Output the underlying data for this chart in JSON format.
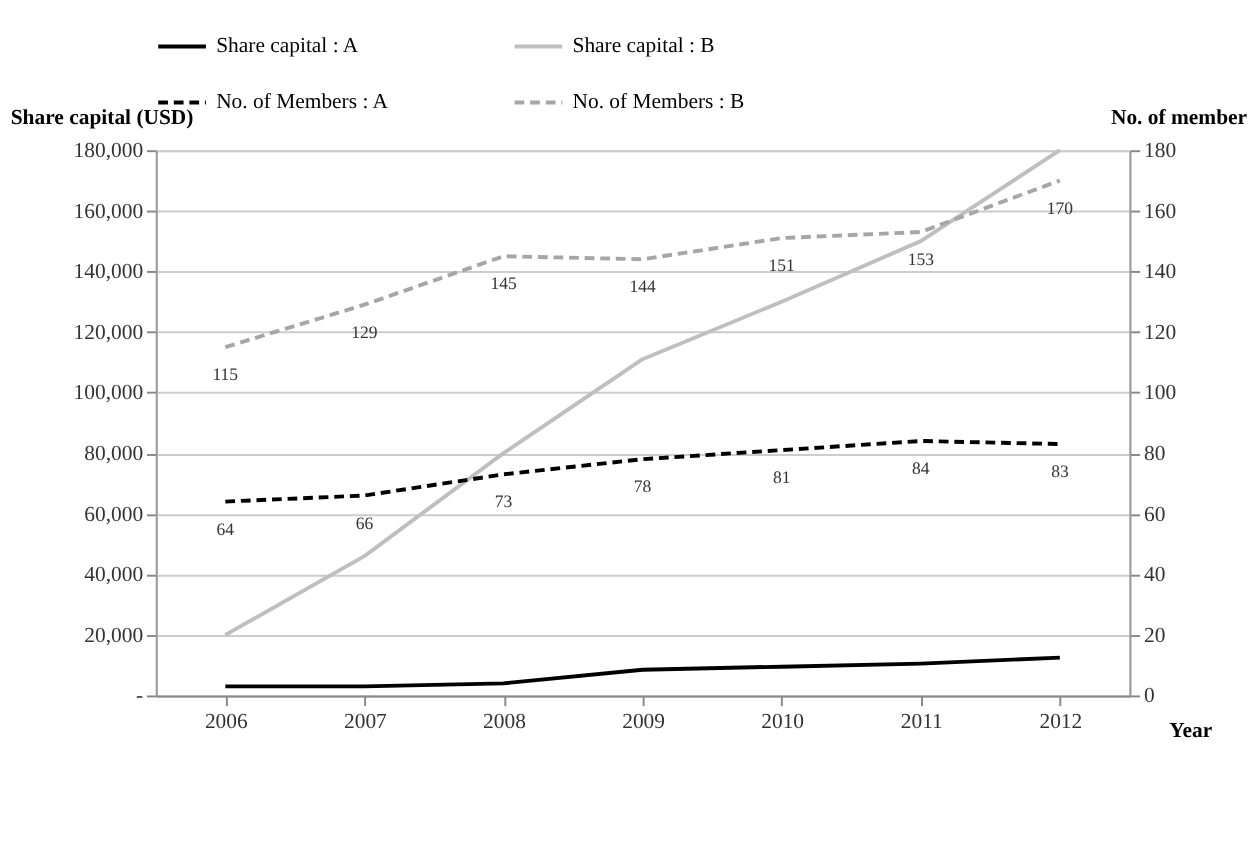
{
  "chart_data": {
    "type": "line",
    "categories": [
      "2006",
      "2007",
      "2008",
      "2009",
      "2010",
      "2011",
      "2012"
    ],
    "xlabel": "Year",
    "ylabel": "Share capital (USD)",
    "y2label": "No. of member",
    "series": [
      {
        "name": "Share capital : A",
        "color": "#000000",
        "line_style": "solid",
        "values": [
          3000,
          3000,
          4000,
          8500,
          9500,
          10500,
          12500
        ]
      },
      {
        "name": "Share capital : B",
        "color": "#bfbfbf",
        "line_style": "solid",
        "values": [
          20000,
          46000,
          80000,
          111000,
          130000,
          150000,
          180000
        ]
      },
      {
        "name": "No. of Members : A",
        "color": "#000000",
        "line_style": "dashed",
        "axis": "y2",
        "data_labels": true,
        "values": [
          64,
          66,
          73,
          78,
          81,
          84,
          83
        ]
      },
      {
        "name": "No. of Members : B",
        "color": "#a6a6a6",
        "line_style": "dashed",
        "axis": "y2",
        "data_labels": true,
        "values": [
          115,
          129,
          145,
          144,
          151,
          153,
          170
        ]
      }
    ],
    "ylim": [
      0,
      180000
    ],
    "yticks": [
      {
        "value": 0,
        "label": "-"
      },
      {
        "value": 20000,
        "label": "20,000"
      },
      {
        "value": 40000,
        "label": "40,000"
      },
      {
        "value": 60000,
        "label": "60,000"
      },
      {
        "value": 80000,
        "label": "80,000"
      },
      {
        "value": 100000,
        "label": "100,000"
      },
      {
        "value": 120000,
        "label": "120,000"
      },
      {
        "value": 140000,
        "label": "140,000"
      },
      {
        "value": 160000,
        "label": "160,000"
      },
      {
        "value": 180000,
        "label": "180,000"
      }
    ],
    "y2lim": [
      0,
      180
    ],
    "y2ticks": [
      0,
      20,
      40,
      60,
      80,
      100,
      120,
      140,
      160,
      180
    ],
    "grid": "y",
    "legend": "top",
    "marker": "none"
  }
}
